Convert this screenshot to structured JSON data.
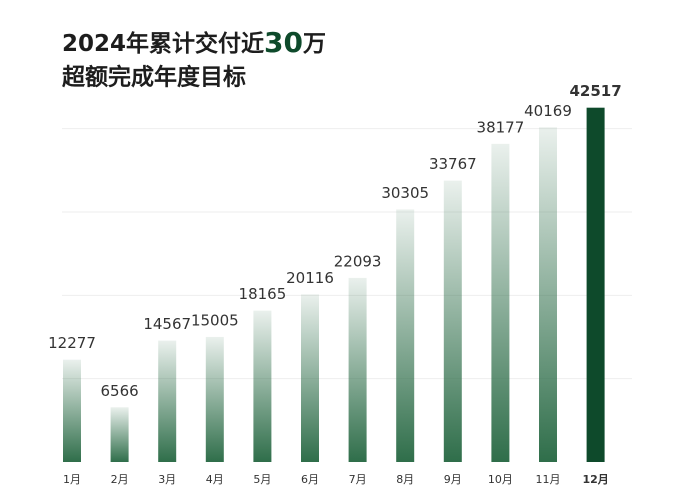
{
  "chart_data": {
    "type": "bar",
    "title": [
      "2024年累计交付近",
      "30",
      "万"
    ],
    "subtitle": "超额完成年度目标",
    "categories": [
      "1月",
      "2月",
      "3月",
      "4月",
      "5月",
      "6月",
      "7月",
      "8月",
      "9月",
      "10月",
      "11月",
      "12月"
    ],
    "values": [
      12277,
      6566,
      14567,
      15005,
      18165,
      20116,
      22093,
      30305,
      33767,
      38177,
      40169,
      42517
    ],
    "colors": [
      "#2f6e4a",
      "#2f6e4a",
      "#2f6e4a",
      "#2f6e4a",
      "#2f6e4a",
      "#2f6e4a",
      "#2f6e4a",
      "#2f6e4a",
      "#2f6e4a",
      "#2f6e4a",
      "#2f6e4a",
      "#0e4a2b"
    ],
    "fills": [
      "gradient",
      "gradient",
      "gradient",
      "gradient",
      "gradient",
      "gradient",
      "gradient",
      "gradient",
      "gradient",
      "gradient",
      "gradient",
      "solid"
    ],
    "accent_color": "#0e4a2b",
    "ylim": [
      0,
      45000
    ],
    "yticks": [
      10000,
      20000,
      30000,
      40000
    ],
    "grid": true
  }
}
